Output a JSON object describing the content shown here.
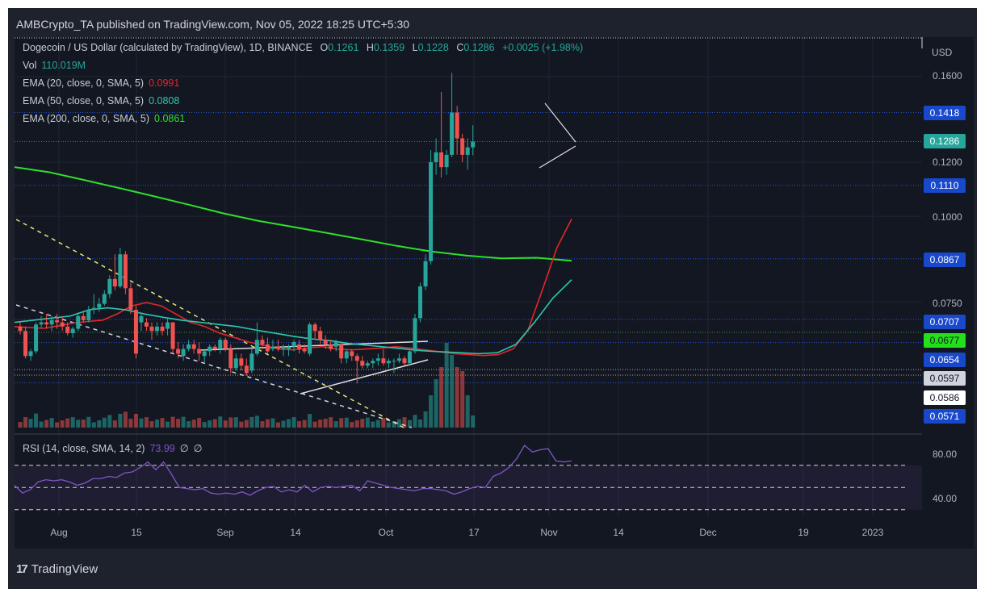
{
  "header": {
    "publisher_line": "AMBCrypto_TA published on TradingView.com, Nov 05, 2022 18:25 UTC+5:30"
  },
  "legend": {
    "symbol": "Dogecoin / US Dollar (calculated by TradingView), 1D, BINANCE",
    "open_label": "O",
    "open": "0.1261",
    "high_label": "H",
    "high": "0.1359",
    "low_label": "L",
    "low": "0.1228",
    "close_label": "C",
    "close": "0.1286",
    "change": "+0.0025 (+1.98%)",
    "vol_label": "Vol",
    "vol": "110.019M",
    "ema20_label": "EMA (20, close, 0, SMA, 5)",
    "ema20": "0.0991",
    "ema50_label": "EMA (50, close, 0, SMA, 5)",
    "ema50": "0.0808",
    "ema200_label": "EMA (200, close, 0, SMA, 5)",
    "ema200": "0.0861",
    "rsi_label": "RSI (14, close, SMA, 14, 2)",
    "rsi": "73.99",
    "rsi_extra1": "∅",
    "rsi_extra2": "∅"
  },
  "price_scale": {
    "currency": "USD",
    "ticks": [
      "0.1600",
      "0.1200",
      "0.1000",
      "0.0750"
    ],
    "tags": [
      {
        "value": "0.1418",
        "bg": "#1848cc",
        "fg": "#ffffff"
      },
      {
        "value": "0.1286",
        "bg": "#26a69a",
        "fg": "#ffffff"
      },
      {
        "value": "0.1110",
        "bg": "#1848cc",
        "fg": "#ffffff"
      },
      {
        "value": "0.0867",
        "bg": "#1848cc",
        "fg": "#ffffff"
      },
      {
        "value": "0.0707",
        "bg": "#1848cc",
        "fg": "#ffffff"
      },
      {
        "value": "0.0677",
        "bg": "#22e01c",
        "fg": "#131722"
      },
      {
        "value": "0.0654",
        "bg": "#1848cc",
        "fg": "#ffffff"
      },
      {
        "value": "0.0597",
        "bg": "#d1d4dc",
        "fg": "#131722"
      },
      {
        "value": "0.0586",
        "bg": "#ffffff",
        "fg": "#131722"
      },
      {
        "value": "0.0571",
        "bg": "#1848cc",
        "fg": "#ffffff"
      }
    ]
  },
  "rsi_scale": {
    "ticks": [
      "80.00",
      "40.00"
    ]
  },
  "time_axis": {
    "labels": [
      "Aug",
      "15",
      "Sep",
      "14",
      "Oct",
      "17",
      "Nov",
      "14",
      "Dec",
      "19",
      "2023"
    ]
  },
  "footer": {
    "brand": "TradingView",
    "brand_mark": "17"
  },
  "colors": {
    "up": "#26a69a",
    "down": "#ef5350",
    "ema20": "#e3262a",
    "ema50": "#2bc8b0",
    "ema200": "#2ee02a",
    "rsi": "#7e57c2",
    "hline_blue": "#2962ff",
    "hline_green": "#4caf50",
    "hline_white": "#d1d4dc"
  },
  "chart_data": {
    "type": "candlestick",
    "title": "Dogecoin / US Dollar, 1D, BINANCE",
    "xlabel": "",
    "ylabel": "USD",
    "scale": "log",
    "ylim": [
      0.055,
      0.165
    ],
    "x_ticks": [
      "Aug",
      "15",
      "Sep",
      "14",
      "Oct",
      "17",
      "Nov",
      "14",
      "Dec",
      "19",
      "2023"
    ],
    "candles_ohlc_daily_from_Jul27": [
      [
        0.069,
        0.07,
        0.0672,
        0.068
      ],
      [
        0.068,
        0.069,
        0.062,
        0.0625
      ],
      [
        0.0625,
        0.064,
        0.0615,
        0.0635
      ],
      [
        0.0635,
        0.07,
        0.063,
        0.0695
      ],
      [
        0.0695,
        0.0715,
        0.0685,
        0.07
      ],
      [
        0.07,
        0.072,
        0.0685,
        0.0695
      ],
      [
        0.0695,
        0.0715,
        0.068,
        0.0705
      ],
      [
        0.0705,
        0.072,
        0.0685,
        0.07
      ],
      [
        0.07,
        0.0715,
        0.068,
        0.069
      ],
      [
        0.069,
        0.07,
        0.067,
        0.0675
      ],
      [
        0.0675,
        0.069,
        0.0665,
        0.0685
      ],
      [
        0.0685,
        0.072,
        0.068,
        0.0715
      ],
      [
        0.0715,
        0.0725,
        0.07,
        0.0705
      ],
      [
        0.0705,
        0.074,
        0.07,
        0.073
      ],
      [
        0.073,
        0.077,
        0.072,
        0.0735
      ],
      [
        0.0735,
        0.076,
        0.0725,
        0.0745
      ],
      [
        0.0745,
        0.078,
        0.074,
        0.077
      ],
      [
        0.077,
        0.082,
        0.076,
        0.081
      ],
      [
        0.081,
        0.088,
        0.078,
        0.079
      ],
      [
        0.079,
        0.09,
        0.0785,
        0.088
      ],
      [
        0.088,
        0.089,
        0.077,
        0.0785
      ],
      [
        0.0785,
        0.08,
        0.072,
        0.073
      ],
      [
        0.073,
        0.074,
        0.062,
        0.063
      ],
      [
        0.07,
        0.072,
        0.068,
        0.0715
      ],
      [
        0.07,
        0.071,
        0.068,
        0.069
      ],
      [
        0.069,
        0.07,
        0.066,
        0.068
      ],
      [
        0.068,
        0.07,
        0.067,
        0.069
      ],
      [
        0.069,
        0.07,
        0.067,
        0.068
      ],
      [
        0.0685,
        0.071,
        0.067,
        0.07
      ],
      [
        0.07,
        0.07,
        0.063,
        0.064
      ],
      [
        0.064,
        0.0655,
        0.062,
        0.063
      ],
      [
        0.0625,
        0.065,
        0.0615,
        0.064
      ],
      [
        0.064,
        0.066,
        0.0635,
        0.065
      ],
      [
        0.065,
        0.066,
        0.063,
        0.064
      ],
      [
        0.064,
        0.0655,
        0.0615,
        0.063
      ],
      [
        0.0625,
        0.064,
        0.061,
        0.0635
      ],
      [
        0.0635,
        0.065,
        0.0625,
        0.0645
      ],
      [
        0.0645,
        0.065,
        0.0635,
        0.064
      ],
      [
        0.064,
        0.0665,
        0.063,
        0.066
      ],
      [
        0.066,
        0.0665,
        0.0635,
        0.064
      ],
      [
        0.064,
        0.065,
        0.059,
        0.06
      ],
      [
        0.06,
        0.063,
        0.0595,
        0.062
      ],
      [
        0.062,
        0.063,
        0.0595,
        0.0605
      ],
      [
        0.0605,
        0.062,
        0.0585,
        0.059
      ],
      [
        0.0595,
        0.064,
        0.059,
        0.063
      ],
      [
        0.063,
        0.07,
        0.0625,
        0.066
      ],
      [
        0.066,
        0.067,
        0.064,
        0.065
      ],
      [
        0.065,
        0.0665,
        0.063,
        0.0635
      ],
      [
        0.064,
        0.066,
        0.0635,
        0.0645
      ],
      [
        0.0645,
        0.066,
        0.0635,
        0.064
      ],
      [
        0.064,
        0.065,
        0.0625,
        0.0645
      ],
      [
        0.064,
        0.065,
        0.0625,
        0.0645
      ],
      [
        0.0645,
        0.066,
        0.0635,
        0.0655
      ],
      [
        0.065,
        0.066,
        0.063,
        0.064
      ],
      [
        0.064,
        0.065,
        0.063,
        0.0635
      ],
      [
        0.063,
        0.07,
        0.0625,
        0.0695
      ],
      [
        0.0695,
        0.07,
        0.066,
        0.068
      ],
      [
        0.068,
        0.069,
        0.065,
        0.066
      ],
      [
        0.066,
        0.067,
        0.064,
        0.065
      ],
      [
        0.065,
        0.066,
        0.0635,
        0.064
      ],
      [
        0.0645,
        0.066,
        0.0635,
        0.0655
      ],
      [
        0.065,
        0.0655,
        0.061,
        0.062
      ],
      [
        0.062,
        0.064,
        0.061,
        0.0635
      ],
      [
        0.0635,
        0.064,
        0.0615,
        0.0625
      ],
      [
        0.0625,
        0.063,
        0.057,
        0.0615
      ],
      [
        0.0615,
        0.0625,
        0.06,
        0.0605
      ],
      [
        0.0605,
        0.0615,
        0.06,
        0.061
      ],
      [
        0.061,
        0.062,
        0.06,
        0.0615
      ],
      [
        0.0615,
        0.063,
        0.0605,
        0.062
      ],
      [
        0.062,
        0.064,
        0.0605,
        0.061
      ],
      [
        0.061,
        0.062,
        0.06,
        0.0615
      ],
      [
        0.0615,
        0.062,
        0.059,
        0.0615
      ],
      [
        0.0615,
        0.063,
        0.061,
        0.062
      ],
      [
        0.062,
        0.0625,
        0.0605,
        0.061
      ],
      [
        0.061,
        0.064,
        0.0605,
        0.0635
      ],
      [
        0.0635,
        0.072,
        0.063,
        0.071
      ],
      [
        0.071,
        0.08,
        0.07,
        0.079
      ],
      [
        0.079,
        0.088,
        0.078,
        0.086
      ],
      [
        0.086,
        0.125,
        0.085,
        0.12
      ],
      [
        0.12,
        0.13,
        0.115,
        0.124
      ],
      [
        0.124,
        0.152,
        0.114,
        0.118
      ],
      [
        0.118,
        0.125,
        0.115,
        0.123
      ],
      [
        0.123,
        0.162,
        0.122,
        0.1418
      ],
      [
        0.1418,
        0.145,
        0.123,
        0.13
      ],
      [
        0.13,
        0.132,
        0.12,
        0.123
      ],
      [
        0.123,
        0.13,
        0.117,
        0.1261
      ],
      [
        0.1261,
        0.1359,
        0.1228,
        0.1286
      ]
    ],
    "ema20_approx": [
      0.069,
      0.0688,
      0.0686,
      0.0692,
      0.0698,
      0.0702,
      0.0705,
      0.072,
      0.074,
      0.0748,
      0.074,
      0.072,
      0.07,
      0.069,
      0.0675,
      0.0665,
      0.0655,
      0.0648,
      0.064,
      0.0638,
      0.0642,
      0.0645,
      0.064,
      0.0638,
      0.064,
      0.0642,
      0.0645,
      0.0642,
      0.0638,
      0.0634,
      0.063,
      0.0628,
      0.0626,
      0.0628,
      0.064,
      0.068,
      0.078,
      0.09,
      0.0991
    ],
    "ema50_approx": [
      0.07,
      0.0705,
      0.071,
      0.0715,
      0.073,
      0.0735,
      0.073,
      0.072,
      0.0712,
      0.0705,
      0.07,
      0.0695,
      0.069,
      0.0682,
      0.0675,
      0.0668,
      0.0662,
      0.0658,
      0.0652,
      0.0648,
      0.0644,
      0.064,
      0.0636,
      0.0634,
      0.0632,
      0.063,
      0.0632,
      0.065,
      0.07,
      0.076,
      0.0808
    ],
    "ema200_approx": [
      0.118,
      0.116,
      0.113,
      0.11,
      0.107,
      0.104,
      0.101,
      0.0985,
      0.0965,
      0.0945,
      0.0925,
      0.0905,
      0.0888,
      0.0876,
      0.0868,
      0.087,
      0.0861
    ],
    "rsi_approx": [
      52,
      45,
      48,
      55,
      57,
      56,
      57,
      55,
      52,
      54,
      58,
      58,
      60,
      59,
      63,
      64,
      68,
      73,
      66,
      73,
      62,
      50,
      49,
      48,
      49,
      45,
      44,
      45,
      44,
      46,
      43,
      47,
      50,
      51,
      46,
      48,
      46,
      52,
      46,
      50,
      51,
      50,
      51,
      52,
      47,
      56,
      54,
      52,
      50,
      49,
      48,
      47,
      49,
      49,
      48,
      47,
      44,
      46,
      49,
      51,
      50,
      60,
      63,
      68,
      76,
      88,
      82,
      84,
      85,
      74,
      73,
      74
    ],
    "horizontal_levels": [
      0.1418,
      0.1286,
      0.111,
      0.0867,
      0.0707,
      0.0677,
      0.0654,
      0.0597,
      0.0586,
      0.0571
    ],
    "rsi_bands": [
      70,
      50,
      30
    ]
  }
}
